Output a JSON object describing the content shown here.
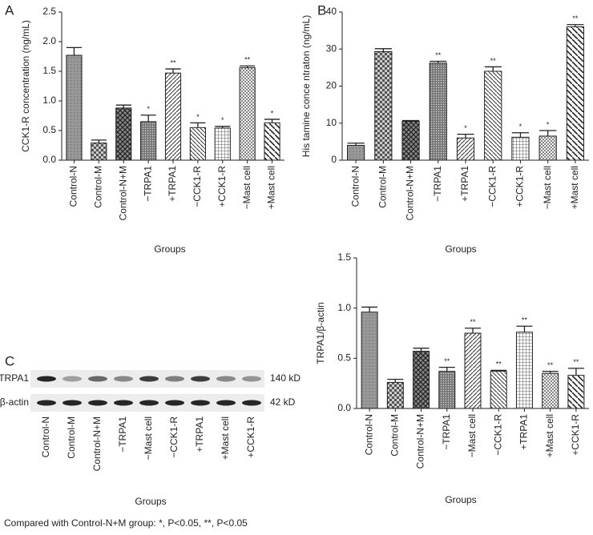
{
  "chart_data": [
    {
      "type": "bar",
      "panel": "A",
      "ylabel": "CCK1-R concentration (ng/mL)",
      "xlabel": "Groups",
      "categories": [
        "Control-N",
        "Control-M",
        "Control-N+M",
        "−TRPA1",
        "+TRPA1",
        "−CCK1-R",
        "+CCK1-R",
        "−Mast cell",
        "+Mast cell"
      ],
      "values": [
        1.77,
        0.29,
        0.88,
        0.65,
        1.47,
        0.55,
        0.54,
        1.56,
        0.63
      ],
      "errors": [
        0.13,
        0.05,
        0.05,
        0.11,
        0.07,
        0.08,
        0.03,
        0.03,
        0.06
      ],
      "annotations": [
        null,
        null,
        null,
        "*",
        "**",
        "*",
        "*",
        "**",
        "*"
      ],
      "ylim": [
        0,
        2.5
      ],
      "yticks": [
        {
          "value": 0,
          "label": "0.0"
        },
        0.5,
        {
          "value": 1,
          "label": "1.0"
        },
        1.5,
        {
          "value": 2,
          "label": "2.0"
        },
        2.5
      ]
    },
    {
      "type": "bar",
      "panel": "B",
      "ylabel": "His tamine conce ntraton (ng/mL)",
      "xlabel": "Groups",
      "categories": [
        "Control-N",
        "Control-M",
        "Control-N+M",
        "−TRPA1",
        "+TRPA1",
        "−CCK1-R",
        "+CCK1-R",
        "−Mast cell",
        "+Mast cell"
      ],
      "values": [
        4,
        29.3,
        10.5,
        26.2,
        6,
        24,
        6.2,
        6.5,
        36
      ],
      "errors": [
        0.6,
        0.8,
        0.2,
        0.5,
        1,
        1.2,
        1.2,
        1.5,
        0.6
      ],
      "annotations": [
        null,
        null,
        null,
        "**",
        "*",
        "**",
        "*",
        "*",
        "**"
      ],
      "ylim": [
        0,
        40
      ],
      "yticks": [
        0,
        10,
        20,
        30,
        40
      ]
    },
    {
      "type": "bar",
      "ylabel": "TRPA1/β-actin",
      "xlabel": "Groups",
      "categories": [
        "Control-N",
        "Control-M",
        "Control-N+M",
        "−TRPA1",
        "−Mast cell",
        "−CCK1-R",
        "+TRPA1",
        "+Mast cell",
        "+CCK1-R"
      ],
      "values": [
        0.96,
        0.26,
        0.57,
        0.37,
        0.75,
        0.37,
        0.76,
        0.35,
        0.33
      ],
      "errors": [
        0.05,
        0.03,
        0.03,
        0.04,
        0.05,
        0.01,
        0.06,
        0.02,
        0.07
      ],
      "annotations": [
        null,
        null,
        null,
        "**",
        "**",
        "**",
        "**",
        "**",
        "**"
      ],
      "ylim": [
        0,
        1.5
      ],
      "yticks": [
        {
          "value": 0,
          "label": "0.0"
        },
        0.5,
        {
          "value": 1,
          "label": "1.0"
        },
        1.5
      ]
    }
  ],
  "blot": {
    "panel": "C",
    "xlabel": "Groups",
    "lanes": [
      "Control-N",
      "Control-M",
      "Control-N+M",
      "−TRPA1",
      "−Mast cell",
      "−CCK1-R",
      "+TRPA1",
      "+Mast cell",
      "+CCK1-R"
    ],
    "rows": [
      {
        "name": "TRPA1",
        "size": "140 kD"
      },
      {
        "name": "β-actin",
        "size": "42 kD"
      }
    ]
  },
  "caption": "Compared with Control-N+M group: *, P<0.05, **, P<0.05"
}
